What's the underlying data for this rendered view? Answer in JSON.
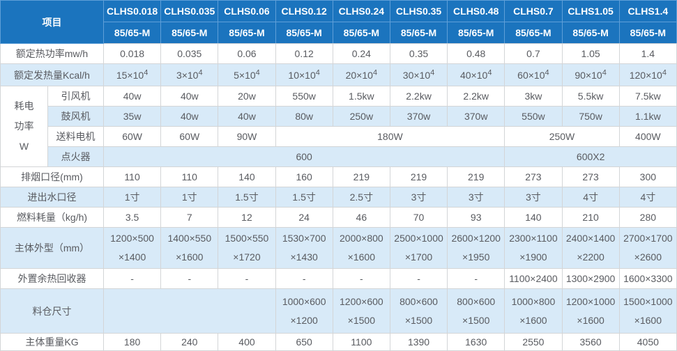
{
  "theme": {
    "header_blue": "#1b74be",
    "header_divider_blue": "#5f9fd8",
    "stripe_blue": "#d8eaf8",
    "grid_gray": "#d3d5d7",
    "body_text_gray": "#595b60",
    "header_text": "#ffffff"
  },
  "table": {
    "corner_label": "项目",
    "models": [
      "CLHS0.018",
      "CLHS0.035",
      "CLHS0.06",
      "CLHS0.12",
      "CLHS0.24",
      "CLHS0.35",
      "CLHS0.48",
      "CLHS0.7",
      "CLHS1.05",
      "CLHS1.4"
    ],
    "sub_headers": [
      "85/65-M",
      "85/65-M",
      "85/65-M",
      "85/65-M",
      "85/65-M",
      "85/65-M",
      "85/65-M",
      "85/65-M",
      "85/65-M",
      "85/65-M"
    ],
    "group": {
      "lines": [
        "耗电",
        "功率",
        "W"
      ],
      "rowspan": 4
    },
    "body_rows": [
      {
        "label": "额定热功率mw/h",
        "cells": [
          "0.018",
          "0.035",
          "0.06",
          "0.12",
          "0.24",
          "0.35",
          "0.48",
          "0.7",
          "1.05",
          "1.4"
        ]
      },
      {
        "label": "额定发热量Kcal/h",
        "cells": [
          {
            "t": "15×10",
            "sup": "4"
          },
          {
            "t": "3×10",
            "sup": "4"
          },
          {
            "t": "5×10",
            "sup": "4"
          },
          {
            "t": "10×10",
            "sup": "4"
          },
          {
            "t": "20×10",
            "sup": "4"
          },
          {
            "t": "30×10",
            "sup": "4"
          },
          {
            "t": "40×10",
            "sup": "4"
          },
          {
            "t": "60×10",
            "sup": "4"
          },
          {
            "t": "90×10",
            "sup": "4"
          },
          {
            "t": "120×10",
            "sup": "4"
          }
        ]
      },
      {
        "label": "引风机",
        "sub": true,
        "group_start": true,
        "cells": [
          "40w",
          "40w",
          "20w",
          "550w",
          "1.5kw",
          "2.2kw",
          "2.2kw",
          "3kw",
          "5.5kw",
          "7.5kw"
        ]
      },
      {
        "label": "鼓风机",
        "sub": true,
        "cells": [
          "35w",
          "40w",
          "40w",
          "80w",
          "250w",
          "370w",
          "370w",
          "550w",
          "750w",
          "1.1kw"
        ]
      },
      {
        "label": "送料电机",
        "sub": true,
        "cells": [
          {
            "t": "60W"
          },
          {
            "t": "60W"
          },
          {
            "t": "90W"
          },
          {
            "t": "180W",
            "span": 4
          },
          {
            "t": "250W",
            "span": 2
          },
          {
            "t": "400W"
          }
        ]
      },
      {
        "label": "点火器",
        "sub": true,
        "cells": [
          {
            "t": "600",
            "span": 7
          },
          {
            "t": "600X2",
            "span": 3
          }
        ]
      },
      {
        "label": "排烟口径(mm)",
        "cells": [
          "110",
          "110",
          "140",
          "160",
          "219",
          "219",
          "219",
          "273",
          "273",
          "300"
        ]
      },
      {
        "label": "进出水口径",
        "cells": [
          "1寸",
          "1寸",
          "1.5寸",
          "1.5寸",
          "2.5寸",
          "3寸",
          "3寸",
          "3寸",
          "4寸",
          "4寸"
        ]
      },
      {
        "label": "燃料耗量（kg/h)",
        "cells": [
          "3.5",
          "7",
          "12",
          "24",
          "46",
          "70",
          "93",
          "140",
          "210",
          "280"
        ]
      },
      {
        "label": "主体外型（mm）",
        "cells": [
          {
            "lines": [
              "1200×500",
              "×1400"
            ]
          },
          {
            "lines": [
              "1400×550",
              "×1600"
            ]
          },
          {
            "lines": [
              "1500×550",
              "×1720"
            ]
          },
          {
            "lines": [
              "1530×700",
              "×1430"
            ]
          },
          {
            "lines": [
              "2000×800",
              "×1600"
            ]
          },
          {
            "lines": [
              "2500×1000",
              "×1700"
            ]
          },
          {
            "lines": [
              "2600×1200",
              "×1950"
            ]
          },
          {
            "lines": [
              "2300×1100",
              "×1900"
            ]
          },
          {
            "lines": [
              "2400×1400",
              "×2200"
            ]
          },
          {
            "lines": [
              "2700×1700",
              "×2600"
            ]
          }
        ]
      },
      {
        "label": "外置余热回收器",
        "cells": [
          "-",
          "-",
          "-",
          "-",
          "-",
          "-",
          "-",
          "1100×2400",
          "1300×2900",
          "1600×3300"
        ]
      },
      {
        "label": "料仓尺寸",
        "cells": [
          {
            "t": "",
            "span": 3
          },
          {
            "lines": [
              "1000×600",
              "×1200"
            ]
          },
          {
            "lines": [
              "1200×600",
              "×1500"
            ]
          },
          {
            "lines": [
              "800×600",
              "×1500"
            ]
          },
          {
            "lines": [
              "800×600",
              "×1500"
            ]
          },
          {
            "lines": [
              "1000×800",
              "×1600"
            ]
          },
          {
            "lines": [
              "1200×1000",
              "×1600"
            ]
          },
          {
            "lines": [
              "1500×1000",
              "×1600"
            ]
          }
        ]
      },
      {
        "label": "主体重量KG",
        "cells": [
          "180",
          "240",
          "400",
          "650",
          "1100",
          "1390",
          "1630",
          "2550",
          "3560",
          "4050"
        ]
      }
    ]
  }
}
